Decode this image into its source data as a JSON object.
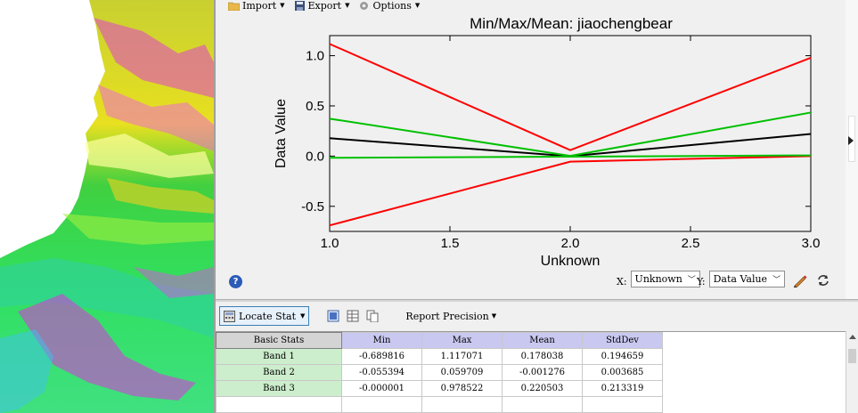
{
  "toolbar": {
    "import_label": "Import",
    "export_label": "Export",
    "options_label": "Options"
  },
  "chart_data": {
    "type": "line",
    "title": "Min/Max/Mean: jiaochengbear",
    "xlabel": "Unknown",
    "ylabel": "Data Value",
    "x": [
      1.0,
      2.0,
      3.0
    ],
    "xlim": [
      1.0,
      3.0
    ],
    "ylim": [
      -0.75,
      1.2
    ],
    "xticks": [
      "1.0",
      "1.5",
      "2.0",
      "2.5",
      "3.0"
    ],
    "xtick_values": [
      1.0,
      1.5,
      2.0,
      2.5,
      3.0
    ],
    "yticks": [
      "-0.5",
      "0.0",
      "0.5",
      "1.0"
    ],
    "ytick_values": [
      -0.5,
      0.0,
      0.5,
      1.0
    ],
    "grid": false,
    "series": [
      {
        "role": "min",
        "color": "#ff0000",
        "values": [
          -0.689816,
          -0.055394,
          -1e-06
        ]
      },
      {
        "role": "max",
        "color": "#ff0000",
        "values": [
          1.117071,
          0.059709,
          0.978522
        ]
      },
      {
        "role": "mean",
        "color": "#000000",
        "values": [
          0.178038,
          -0.001276,
          0.220503
        ]
      },
      {
        "role": "mean_minus_std",
        "color": "#00c000",
        "values": [
          -0.016621,
          -0.004961,
          0.007184
        ]
      },
      {
        "role": "mean_plus_std",
        "color": "#00c000",
        "values": [
          0.372697,
          0.002409,
          0.433822
        ]
      }
    ]
  },
  "controls": {
    "x_label": "X:",
    "x_value": "Unknown",
    "y_label": "Y:",
    "y_value": "Data Value",
    "help_glyph": "?"
  },
  "stats_toolbar": {
    "locate_label": "Locate Stat",
    "precision_label": "Report Precision"
  },
  "table": {
    "corner": "Basic Stats",
    "columns": [
      "Min",
      "Max",
      "Mean",
      "StdDev"
    ],
    "rows": [
      {
        "name": "Band 1",
        "cells": [
          "-0.689816",
          "1.117071",
          "0.178038",
          "0.194659"
        ]
      },
      {
        "name": "Band 2",
        "cells": [
          "-0.055394",
          "0.059709",
          "-0.001276",
          "0.003685"
        ]
      },
      {
        "name": "Band 3",
        "cells": [
          "-0.000001",
          "0.978522",
          "0.220503",
          "0.213319"
        ]
      }
    ]
  },
  "icons": {
    "import": "folder-icon",
    "export": "save-disk-icon",
    "options": "gear-icon",
    "help": "help-icon",
    "pencil": "pencil-icon",
    "refresh": "refresh-icon"
  }
}
